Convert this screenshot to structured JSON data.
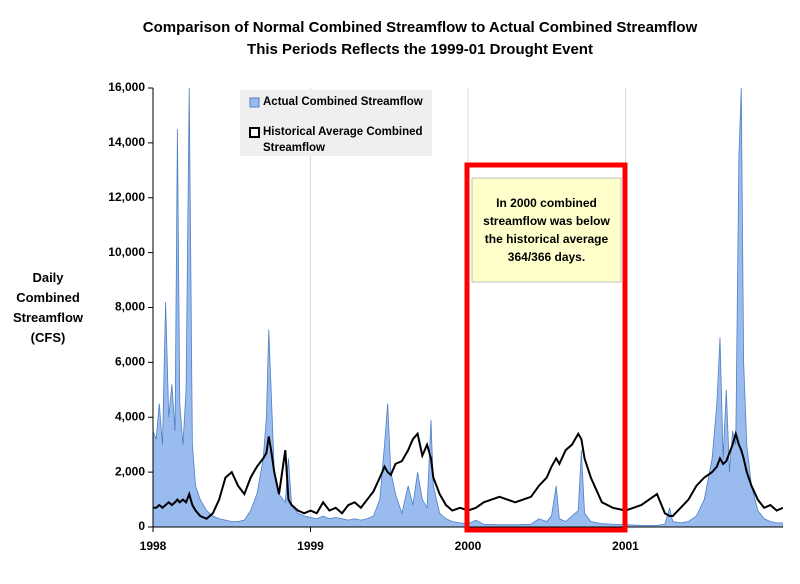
{
  "chart_data": {
    "type": "area_line",
    "title": "Comparison of Normal Combined Streamflow to Actual Combined Streamflow",
    "subtitle": "This Periods Reflects the 1999-01 Drought Event",
    "y_label": "Daily Combined Streamflow (CFS)",
    "annotation": "In 2000 combined streamflow was below the historical average 364/366 days.",
    "legend": "upper left",
    "xlim": [
      1998,
      2002
    ],
    "xticks": [
      1998,
      1999,
      2000,
      2001
    ],
    "ylim": [
      0,
      16000
    ],
    "yticks": [
      0,
      {
        "value": 2000,
        "label": "2,000"
      },
      {
        "value": 4000,
        "label": "4,000"
      },
      {
        "value": 6000,
        "label": "6,000"
      },
      {
        "value": 8000,
        "label": "8,000"
      },
      {
        "value": 10000,
        "label": "10,000"
      },
      {
        "value": 12000,
        "label": "12,000"
      },
      {
        "value": 14000,
        "label": "14,000"
      },
      {
        "value": 16000,
        "label": "16,000"
      }
    ],
    "x": [
      1998.0,
      1998.02,
      1998.04,
      1998.06,
      1998.08,
      1998.1,
      1998.12,
      1998.14,
      1998.155,
      1998.17,
      1998.19,
      1998.21,
      1998.23,
      1998.25,
      1998.27,
      1998.3,
      1998.34,
      1998.38,
      1998.42,
      1998.46,
      1998.5,
      1998.54,
      1998.58,
      1998.62,
      1998.66,
      1998.7,
      1998.72,
      1998.735,
      1998.75,
      1998.77,
      1998.8,
      1998.84,
      1998.86,
      1998.88,
      1998.92,
      1998.96,
      1999.0,
      1999.04,
      1999.08,
      1999.12,
      1999.16,
      1999.2,
      1999.24,
      1999.28,
      1999.32,
      1999.36,
      1999.4,
      1999.44,
      1999.47,
      1999.49,
      1999.51,
      1999.54,
      1999.58,
      1999.62,
      1999.65,
      1999.68,
      1999.71,
      1999.74,
      1999.765,
      1999.78,
      1999.82,
      1999.86,
      1999.9,
      1999.95,
      2000.0,
      2000.05,
      2000.1,
      2000.2,
      2000.3,
      2000.4,
      2000.45,
      2000.5,
      2000.53,
      2000.56,
      2000.58,
      2000.62,
      2000.66,
      2000.7,
      2000.72,
      2000.74,
      2000.78,
      2000.85,
      2000.92,
      2001.0,
      2001.1,
      2001.2,
      2001.25,
      2001.28,
      2001.3,
      2001.35,
      2001.4,
      2001.45,
      2001.5,
      2001.55,
      2001.58,
      2001.6,
      2001.62,
      2001.64,
      2001.66,
      2001.68,
      2001.7,
      2001.72,
      2001.735,
      2001.75,
      2001.77,
      2001.8,
      2001.84,
      2001.88,
      2001.92,
      2001.96,
      2002.0
    ],
    "series": [
      {
        "name": "Actual Combined Streamflow",
        "kind": "area",
        "color": "#99bbee",
        "values": [
          3500,
          3200,
          4500,
          3000,
          8200,
          4000,
          5200,
          3500,
          14500,
          4500,
          3000,
          5000,
          16000,
          3000,
          1500,
          1000,
          600,
          400,
          300,
          250,
          200,
          200,
          250,
          600,
          1200,
          2500,
          4000,
          7200,
          5000,
          2000,
          1200,
          900,
          2500,
          800,
          500,
          400,
          350,
          300,
          400,
          300,
          350,
          300,
          250,
          300,
          250,
          300,
          400,
          1000,
          3000,
          4500,
          2000,
          1200,
          500,
          1500,
          800,
          2000,
          1000,
          700,
          3900,
          1500,
          500,
          300,
          200,
          150,
          120,
          250,
          100,
          80,
          80,
          100,
          300,
          200,
          400,
          1500,
          300,
          200,
          400,
          600,
          2800,
          500,
          200,
          120,
          100,
          80,
          60,
          60,
          100,
          700,
          200,
          150,
          200,
          400,
          1000,
          2500,
          4500,
          6900,
          2500,
          5000,
          2000,
          3500,
          3000,
          13500,
          16000,
          6000,
          3000,
          1500,
          600,
          300,
          200,
          150,
          150
        ]
      },
      {
        "name": "Historical Average Combined Streamflow",
        "kind": "line",
        "color": "#000000",
        "values": [
          700,
          700,
          800,
          700,
          800,
          900,
          800,
          900,
          1000,
          900,
          1000,
          900,
          1200,
          800,
          600,
          400,
          300,
          500,
          1000,
          1800,
          2000,
          1500,
          1200,
          1800,
          2200,
          2500,
          2700,
          3300,
          2800,
          2000,
          1200,
          2800,
          1000,
          800,
          600,
          500,
          600,
          500,
          900,
          600,
          700,
          500,
          800,
          900,
          700,
          1000,
          1300,
          1800,
          2200,
          2000,
          1900,
          2300,
          2400,
          2800,
          3200,
          3400,
          2600,
          3000,
          2500,
          1800,
          1200,
          800,
          600,
          700,
          600,
          700,
          900,
          1100,
          900,
          1100,
          1500,
          1800,
          2200,
          2500,
          2300,
          2800,
          3000,
          3400,
          3200,
          2500,
          1800,
          900,
          700,
          600,
          800,
          1200,
          500,
          400,
          400,
          700,
          1000,
          1500,
          1800,
          2000,
          2200,
          2500,
          2300,
          2400,
          2700,
          3000,
          3400,
          3000,
          2800,
          2500,
          2000,
          1500,
          1000,
          700,
          800,
          600,
          700
        ]
      }
    ]
  }
}
